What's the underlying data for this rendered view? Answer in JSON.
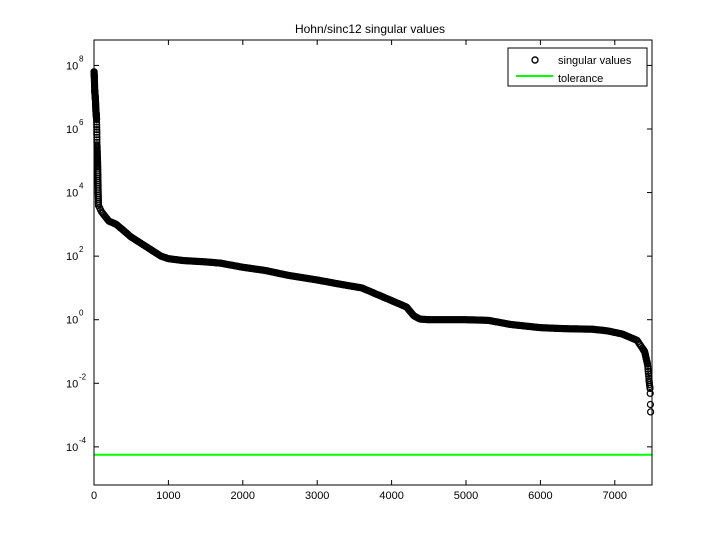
{
  "chart_data": {
    "type": "scatter",
    "title": "Hohn/sinc12 singular values",
    "xlabel": "",
    "ylabel": "",
    "xlim": [
      0,
      7500
    ],
    "ylim_log10": [
      -5.2,
      8.8
    ],
    "yscale": "log",
    "grid": false,
    "legend_position": "top-right",
    "x_ticks": [
      0,
      1000,
      2000,
      3000,
      4000,
      5000,
      6000,
      7000
    ],
    "y_tick_exponents": [
      -4,
      -2,
      0,
      2,
      4,
      6,
      8
    ],
    "y_tick_base": "10",
    "series": [
      {
        "name": "singular values",
        "marker": "circle",
        "color": "#000000",
        "n_points": 7481,
        "profile_x": [
          1,
          5,
          10,
          20,
          25,
          35,
          40,
          50,
          60,
          100,
          200,
          300,
          500,
          700,
          900,
          1000,
          1200,
          1500,
          1700,
          2000,
          2300,
          2600,
          3000,
          3300,
          3600,
          3800,
          4000,
          4200,
          4300,
          4380,
          4500,
          5000,
          5300,
          5600,
          6000,
          6300,
          6700,
          6900,
          7100,
          7300,
          7400,
          7440,
          7460,
          7475,
          7481
        ],
        "profile_log10_y": [
          7.8,
          7.6,
          7.2,
          6.9,
          6.6,
          6.3,
          5.5,
          4.8,
          3.6,
          3.4,
          3.1,
          3.0,
          2.6,
          2.3,
          2.0,
          1.92,
          1.86,
          1.82,
          1.78,
          1.65,
          1.55,
          1.4,
          1.25,
          1.12,
          1.0,
          0.8,
          0.6,
          0.4,
          0.12,
          0.02,
          0.0,
          0.0,
          -0.02,
          -0.15,
          -0.25,
          -0.28,
          -0.3,
          -0.35,
          -0.45,
          -0.65,
          -1.0,
          -1.4,
          -1.9,
          -2.2,
          -2.9
        ]
      },
      {
        "name": "tolerance",
        "marker": "line",
        "color": "#00ff00",
        "log10_y": -4.25
      }
    ]
  }
}
